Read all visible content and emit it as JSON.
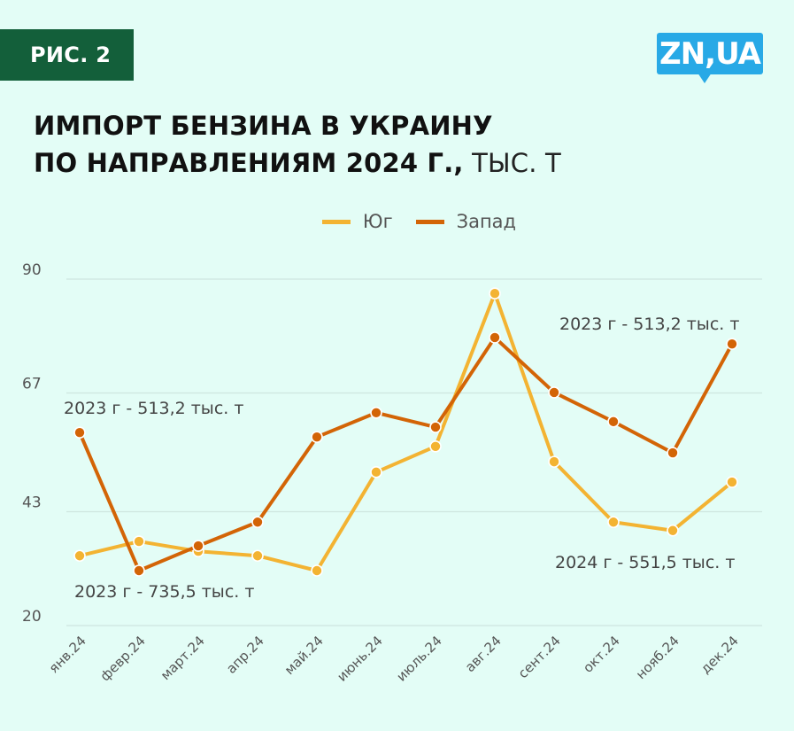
{
  "header": {
    "badge": "РИС. 2",
    "logo": "ZN,UA",
    "title_line1": "ИМПОРТ БЕНЗИНА В УКРАИНУ",
    "title_line2_bold": "ПО НАПРАВЛЕНИЯМ 2024 Г.,",
    "title_line2_unit": " ТЫС. Т"
  },
  "colors": {
    "background": "#e3fdf6",
    "badge": "#135f3a",
    "logo": "#28a9e6",
    "south": "#f3b332",
    "west": "#d36406",
    "grid": "#cfe6e0"
  },
  "legend": [
    {
      "label": "Юг",
      "color": "#f3b332"
    },
    {
      "label": "Запад",
      "color": "#d36406"
    }
  ],
  "chart_data": {
    "type": "line",
    "title": "Импорт бензина в Украину по направлениям 2024 г., тыс. т",
    "xlabel": "",
    "ylabel": "тыс. т",
    "categories": [
      "янв.24",
      "февр.24",
      "март.24",
      "апр.24",
      "май.24",
      "июнь.24",
      "июль.24",
      "авг.24",
      "сент.24",
      "окт.24",
      "нояб.24",
      "дек.24"
    ],
    "series": [
      {
        "name": "Юг",
        "color": "#f3b332",
        "values": [
          34.1,
          37.0,
          35.0,
          34.1,
          31.1,
          51.0,
          56.2,
          87.1,
          53.1,
          40.9,
          39.2,
          49.0
        ]
      },
      {
        "name": "Запад",
        "color": "#d36406",
        "values": [
          59.0,
          31.1,
          36.1,
          40.9,
          58.1,
          63.0,
          60.1,
          78.2,
          67.1,
          61.2,
          54.9,
          76.9
        ]
      }
    ],
    "yticks": [
      20,
      43,
      67,
      90
    ],
    "ylim": [
      20,
      90
    ],
    "grid": true,
    "legend_position": "top",
    "annotations": [
      {
        "text": "2023 г - 513,2 тыс. т",
        "x": 72,
        "y": 467
      },
      {
        "text": "2023 г - 735,5 тыс. т",
        "x": 84,
        "y": 674
      },
      {
        "text": "2023 г - 513,2 тыс. т",
        "x": 632,
        "y": 372
      },
      {
        "text": "2024 г - 551,5 тыс. т",
        "x": 627,
        "y": 641
      }
    ]
  }
}
